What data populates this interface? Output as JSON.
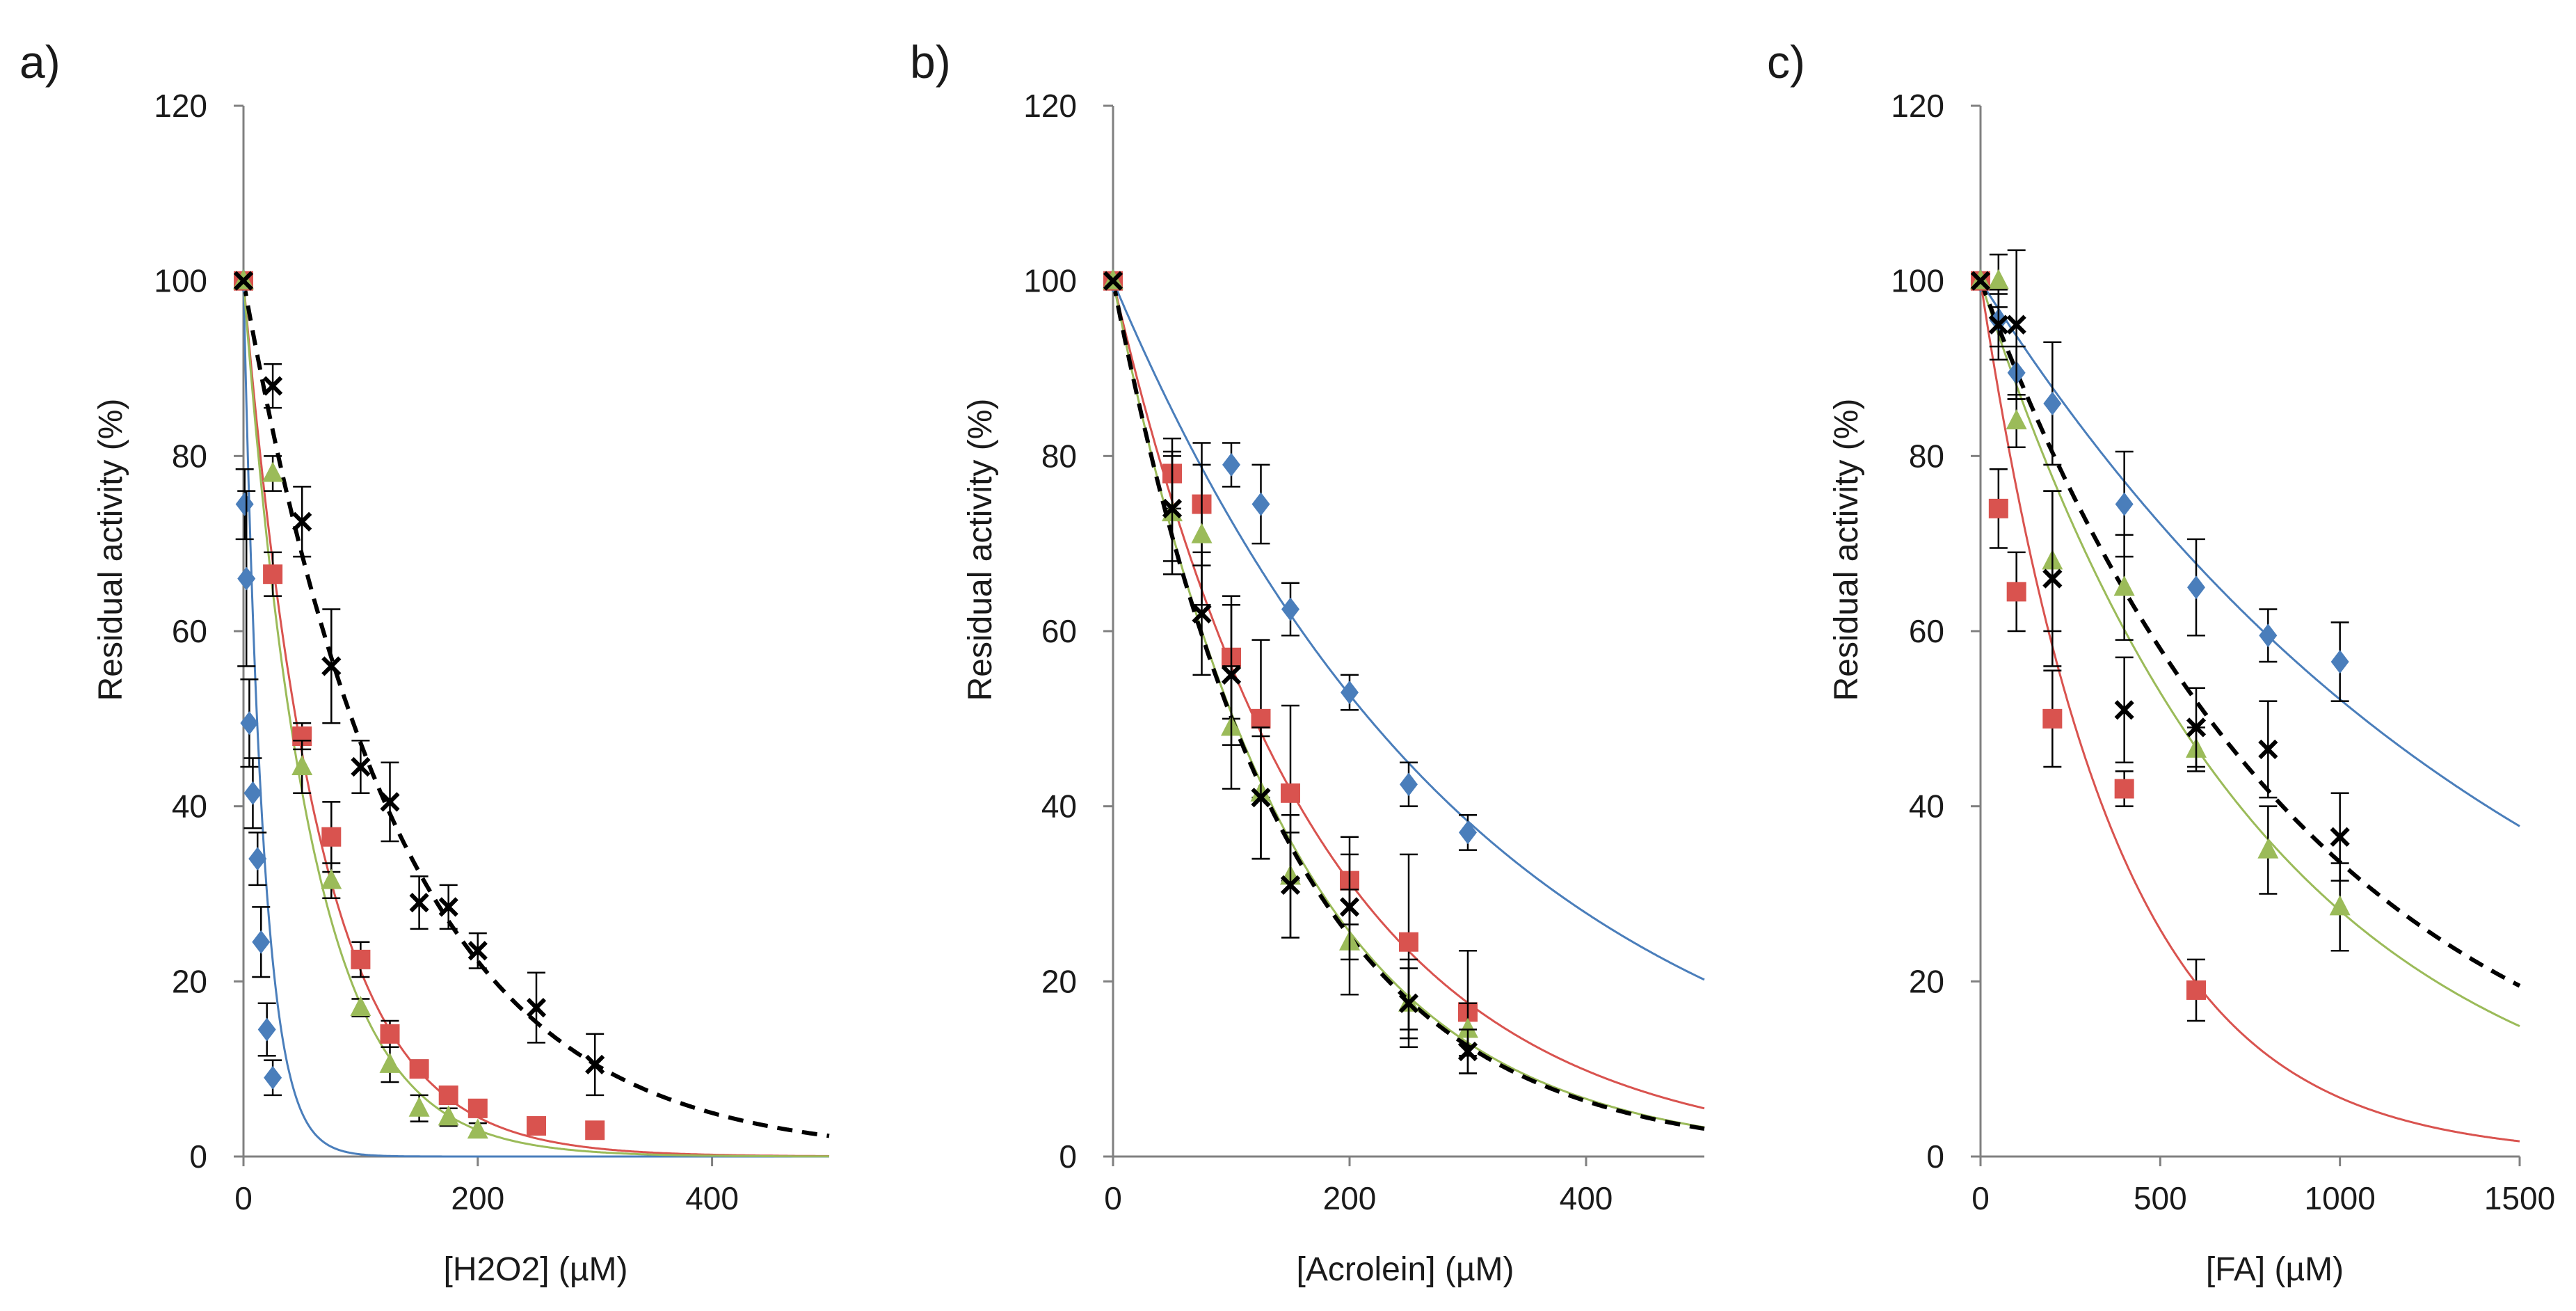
{
  "chart_data": [
    {
      "type": "scatter",
      "panel_label": "a)",
      "xlabel": "[H2O2] (µM)",
      "ylabel": "Residual activity (%)",
      "xlim": [
        0,
        500
      ],
      "ylim": [
        0,
        120
      ],
      "xticks": [
        0,
        200,
        400
      ],
      "yticks": [
        0,
        20,
        40,
        60,
        80,
        100,
        120
      ],
      "grid": false,
      "series": [
        {
          "color": "#4A7EBB",
          "marker": "diamond",
          "line": "solid",
          "k": 0.06,
          "points": [
            [
              0,
              100,
              0
            ],
            [
              1,
              74.5,
              4
            ],
            [
              2.5,
              66,
              10
            ],
            [
              5,
              49.5,
              5
            ],
            [
              8,
              41.5,
              4
            ],
            [
              12,
              34,
              3
            ],
            [
              15,
              24.5,
              4
            ],
            [
              20,
              14.5,
              3
            ],
            [
              25,
              9,
              2
            ]
          ]
        },
        {
          "color": "#D9534F",
          "marker": "square",
          "line": "solid",
          "k": 0.0155,
          "points": [
            [
              0,
              100,
              0
            ],
            [
              25,
              66.5,
              2.5
            ],
            [
              50,
              48,
              1.5
            ],
            [
              75,
              36.5,
              4
            ],
            [
              100,
              22.5,
              2
            ],
            [
              125,
              14,
              1.5
            ],
            [
              150,
              10,
              1
            ],
            [
              175,
              7,
              1
            ],
            [
              200,
              5.5,
              1
            ],
            [
              250,
              3.5,
              0.8
            ],
            [
              300,
              3,
              0.8
            ]
          ]
        },
        {
          "color": "#9BBB59",
          "marker": "triangle",
          "line": "solid",
          "k": 0.0175,
          "points": [
            [
              0,
              100,
              0
            ],
            [
              25,
              78,
              2
            ],
            [
              50,
              44.5,
              3
            ],
            [
              75,
              31.5,
              2
            ],
            [
              100,
              17,
              1
            ],
            [
              125,
              10.5,
              2
            ],
            [
              150,
              5.5,
              1.5
            ],
            [
              175,
              4.5,
              1
            ],
            [
              200,
              3,
              0.8
            ]
          ]
        },
        {
          "color": "#000000",
          "marker": "x",
          "line": "dashed",
          "k": 0.0075,
          "points": [
            [
              0,
              100,
              0
            ],
            [
              25,
              88,
              2.5
            ],
            [
              50,
              72.5,
              4
            ],
            [
              75,
              56,
              6.5
            ],
            [
              100,
              44.5,
              3
            ],
            [
              125,
              40.5,
              4.5
            ],
            [
              150,
              29,
              3
            ],
            [
              175,
              28.5,
              2.5
            ],
            [
              200,
              23.5,
              2
            ],
            [
              250,
              17,
              4
            ],
            [
              300,
              10.5,
              3.5
            ]
          ]
        }
      ]
    },
    {
      "type": "scatter",
      "panel_label": "b)",
      "xlabel": "[Acrolein] (µM)",
      "ylabel": "Residual activity (%)",
      "xlim": [
        0,
        500
      ],
      "ylim": [
        0,
        120
      ],
      "xticks": [
        0,
        200,
        400
      ],
      "yticks": [
        0,
        20,
        40,
        60,
        80,
        100,
        120
      ],
      "grid": false,
      "series": [
        {
          "color": "#4A7EBB",
          "marker": "diamond",
          "line": "solid",
          "k": 0.0032,
          "points": [
            [
              0,
              100,
              0
            ],
            [
              100,
              79,
              2.5
            ],
            [
              125,
              74.5,
              4.5
            ],
            [
              150,
              62.5,
              3
            ],
            [
              200,
              53,
              2
            ],
            [
              250,
              42.5,
              2.5
            ],
            [
              300,
              37,
              2
            ]
          ]
        },
        {
          "color": "#D9534F",
          "marker": "square",
          "line": "solid",
          "k": 0.0058,
          "points": [
            [
              0,
              100,
              0
            ],
            [
              50,
              78,
              4
            ],
            [
              75,
              74.5,
              7
            ],
            [
              100,
              57,
              7
            ],
            [
              125,
              50,
              9
            ],
            [
              150,
              41.5,
              10
            ],
            [
              200,
              31.5,
              5
            ],
            [
              250,
              24.5,
              10
            ],
            [
              300,
              16.5,
              7
            ]
          ]
        },
        {
          "color": "#9BBB59",
          "marker": "triangle",
          "line": "solid",
          "k": 0.0068,
          "points": [
            [
              0,
              100,
              0
            ],
            [
              50,
              73.5,
              7
            ],
            [
              75,
              71,
              8
            ],
            [
              100,
              49,
              7
            ],
            [
              125,
              41.5,
              7.5
            ],
            [
              150,
              32,
              7
            ],
            [
              200,
              24.5,
              6
            ],
            [
              250,
              17.5,
              4
            ],
            [
              300,
              14.5,
              3
            ]
          ]
        },
        {
          "color": "#000000",
          "marker": "x",
          "line": "dashed",
          "k": 0.0069,
          "points": [
            [
              0,
              100,
              0
            ],
            [
              50,
              74,
              6
            ],
            [
              75,
              62,
              7
            ],
            [
              100,
              55,
              8
            ],
            [
              125,
              41,
              7
            ],
            [
              150,
              31,
              6
            ],
            [
              200,
              28.5,
              6
            ],
            [
              250,
              17.5,
              5
            ],
            [
              300,
              12,
              2.5
            ]
          ]
        }
      ]
    },
    {
      "type": "scatter",
      "panel_label": "c)",
      "xlabel": "[FA] (µM)",
      "ylabel": "Residual activity (%)",
      "xlim": [
        0,
        1500
      ],
      "ylim": [
        0,
        120
      ],
      "xticks": [
        0,
        500,
        1000,
        1500
      ],
      "yticks": [
        0,
        20,
        40,
        60,
        80,
        100,
        120
      ],
      "grid": false,
      "series": [
        {
          "color": "#4A7EBB",
          "marker": "diamond",
          "line": "solid",
          "k": 0.00065,
          "points": [
            [
              0,
              100,
              0
            ],
            [
              50,
              95.5,
              3
            ],
            [
              100,
              89.5,
              3
            ],
            [
              200,
              86,
              7
            ],
            [
              400,
              74.5,
              6
            ],
            [
              600,
              65,
              5.5
            ],
            [
              800,
              59.5,
              3
            ],
            [
              1000,
              56.5,
              4.5
            ]
          ]
        },
        {
          "color": "#D9534F",
          "marker": "square",
          "line": "solid",
          "k": 0.0027,
          "points": [
            [
              0,
              100,
              0
            ],
            [
              50,
              74,
              4.5
            ],
            [
              100,
              64.5,
              4.5
            ],
            [
              200,
              50,
              5.5
            ],
            [
              400,
              42,
              2
            ],
            [
              600,
              19,
              3.5
            ]
          ]
        },
        {
          "color": "#9BBB59",
          "marker": "triangle",
          "line": "solid",
          "k": 0.00127,
          "points": [
            [
              0,
              100,
              0
            ],
            [
              50,
              100,
              3
            ],
            [
              100,
              84,
              3
            ],
            [
              200,
              68,
              8
            ],
            [
              400,
              65,
              6
            ],
            [
              600,
              46.5,
              2.5
            ],
            [
              800,
              35,
              5
            ],
            [
              1000,
              28.5,
              5
            ]
          ]
        },
        {
          "color": "#000000",
          "marker": "x",
          "line": "dashed",
          "k": 0.00109,
          "points": [
            [
              0,
              100,
              0
            ],
            [
              50,
              95,
              4
            ],
            [
              100,
              95,
              8.5
            ],
            [
              200,
              66,
              10
            ],
            [
              400,
              51,
              6
            ],
            [
              600,
              49,
              4.5
            ],
            [
              800,
              46.5,
              5.5
            ],
            [
              1000,
              36.5,
              5
            ]
          ]
        }
      ]
    }
  ]
}
